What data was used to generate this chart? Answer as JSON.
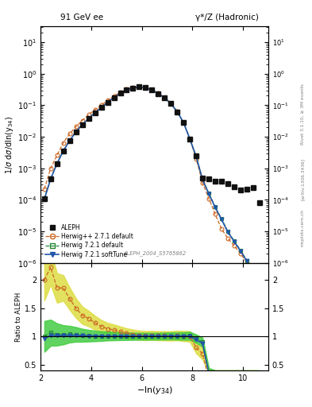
{
  "title_left": "91 GeV ee",
  "title_right": "γ*/Z (Hadronic)",
  "xlabel": "-ln(y_{34})",
  "ylabel_main": "1/σ dσ/dln(y_{34})",
  "ylabel_ratio": "Ratio to ALEPH",
  "watermark": "ALEPH_2004_S5765862",
  "rivet_label": "Rivet 3.1.10, ≥ 3M events",
  "arxiv_label": "[arXiv:1306.3436]",
  "mcplots_label": "mcplots.cern.ch",
  "xlim": [
    2,
    11
  ],
  "ylim_main_log": [
    -6,
    1.5
  ],
  "ylim_ratio": [
    0.4,
    2.3
  ],
  "color_hwpp": "#cc6622",
  "color_hw721_def": "#228833",
  "color_hw721_soft": "#2255aa",
  "color_aleph": "#111111",
  "color_band_green": "#44cc44",
  "color_band_yellow": "#dddd44",
  "bg_color": "#ffffff",
  "aleph_x": [
    2.15,
    2.4,
    2.65,
    2.9,
    3.15,
    3.4,
    3.65,
    3.9,
    4.15,
    4.4,
    4.65,
    4.9,
    5.15,
    5.4,
    5.65,
    5.9,
    6.15,
    6.4,
    6.65,
    6.9,
    7.15,
    7.4,
    7.65,
    7.9,
    8.15,
    8.4,
    8.65,
    8.9,
    9.15,
    9.4,
    9.65,
    9.9,
    10.15,
    10.4,
    10.65
  ],
  "aleph_y": [
    0.00011,
    0.00045,
    0.0014,
    0.0035,
    0.0075,
    0.014,
    0.024,
    0.038,
    0.058,
    0.085,
    0.125,
    0.175,
    0.238,
    0.305,
    0.355,
    0.38,
    0.36,
    0.305,
    0.235,
    0.172,
    0.112,
    0.062,
    0.028,
    0.0085,
    0.0025,
    0.0005,
    0.00045,
    0.0004,
    0.00038,
    0.00032,
    0.00026,
    0.0002,
    0.00022,
    0.00025,
    8e-05
  ],
  "hwpp_y": [
    0.00022,
    0.001,
    0.0026,
    0.0065,
    0.0125,
    0.021,
    0.033,
    0.05,
    0.072,
    0.1,
    0.142,
    0.195,
    0.258,
    0.322,
    0.368,
    0.388,
    0.365,
    0.31,
    0.238,
    0.174,
    0.113,
    0.063,
    0.0282,
    0.0085,
    0.002,
    0.00035,
    0.00011,
    3.5e-05,
    1.2e-05,
    6e-06,
    3.5e-06,
    2e-06,
    1e-06,
    5e-07,
    3e-07
  ],
  "hw721d_y": [
    0.00011,
    0.00048,
    0.00145,
    0.0036,
    0.0078,
    0.0145,
    0.0245,
    0.0385,
    0.0585,
    0.0855,
    0.126,
    0.176,
    0.239,
    0.306,
    0.356,
    0.381,
    0.361,
    0.306,
    0.236,
    0.173,
    0.113,
    0.0625,
    0.0282,
    0.0086,
    0.0024,
    0.00045,
    0.00016,
    6e-05,
    2.5e-05,
    1e-05,
    5e-06,
    2.5e-06,
    1.2e-06,
    5e-07,
    2e-07
  ],
  "hw721s_y": [
    0.000105,
    0.00046,
    0.00142,
    0.00355,
    0.0076,
    0.0143,
    0.0243,
    0.0383,
    0.0583,
    0.0853,
    0.1255,
    0.1755,
    0.2385,
    0.3055,
    0.3555,
    0.3805,
    0.3605,
    0.3055,
    0.2355,
    0.1725,
    0.1125,
    0.0622,
    0.0281,
    0.00855,
    0.00235,
    0.00044,
    0.000155,
    5.8e-05,
    2.4e-05,
    9.5e-06,
    4.8e-06,
    2.4e-06,
    1.15e-06,
    4.8e-07,
    1.9e-07
  ],
  "ratio_ylim": [
    0.4,
    2.3
  ],
  "ratio_yticks": [
    0.5,
    1.0,
    1.5,
    2.0
  ]
}
